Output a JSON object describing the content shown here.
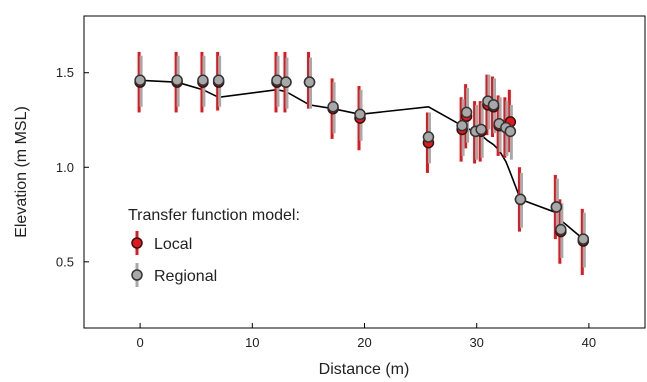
{
  "chart_data": {
    "type": "scatter",
    "xlabel": "Distance (m)",
    "ylabel": "Elevation (m MSL)",
    "xlim": [
      -5,
      45
    ],
    "ylim": [
      0.15,
      1.8
    ],
    "xticks": [
      0,
      10,
      20,
      30,
      40
    ],
    "yticks": [
      0.5,
      1.0,
      1.5
    ],
    "xtick_labels": [
      "0",
      "10",
      "20",
      "30",
      "40"
    ],
    "ytick_labels": [
      "0.5",
      "1.0",
      "1.5"
    ],
    "grid": false,
    "legend": {
      "title": "Transfer function model:",
      "placement": "bottom-left",
      "entries": [
        "Local",
        "Regional"
      ]
    },
    "line": {
      "x": [
        0,
        3.3,
        5.6,
        7.0,
        12.2,
        13.0,
        15.1,
        17.2,
        19.6,
        25.7,
        28.7,
        29.1,
        29.9,
        30.4,
        31.0,
        31.5,
        32.0,
        32.6,
        33.0,
        33.9,
        37.1,
        37.5,
        39.5
      ],
      "y": [
        1.46,
        1.45,
        1.41,
        1.37,
        1.41,
        1.4,
        1.33,
        1.31,
        1.28,
        1.32,
        1.22,
        1.21,
        1.18,
        1.17,
        1.14,
        1.12,
        1.09,
        1.03,
        0.97,
        0.83,
        0.76,
        0.72,
        0.62
      ]
    },
    "series": [
      {
        "name": "Local",
        "color": "#e0191f",
        "x": [
          0,
          3.3,
          5.6,
          7.0,
          12.2,
          13.0,
          15.1,
          17.2,
          19.6,
          25.7,
          28.7,
          29.1,
          29.9,
          30.4,
          31.0,
          31.5,
          32.0,
          32.6,
          33.0,
          33.9,
          37.1,
          37.5,
          39.5
        ],
        "y": [
          1.45,
          1.45,
          1.45,
          1.45,
          1.45,
          1.45,
          1.45,
          1.31,
          1.26,
          1.13,
          1.2,
          1.27,
          1.19,
          1.19,
          1.33,
          1.32,
          1.22,
          1.21,
          1.24,
          0.83,
          0.79,
          0.66,
          0.61
        ],
        "y_low": [
          1.29,
          1.29,
          1.29,
          1.3,
          1.29,
          1.29,
          1.31,
          1.15,
          1.09,
          0.97,
          1.03,
          1.1,
          1.02,
          1.03,
          1.17,
          1.16,
          1.06,
          1.05,
          1.08,
          0.66,
          0.62,
          0.49,
          0.43
        ],
        "y_high": [
          1.61,
          1.61,
          1.61,
          1.61,
          1.61,
          1.61,
          1.61,
          1.47,
          1.43,
          1.29,
          1.37,
          1.44,
          1.35,
          1.35,
          1.49,
          1.48,
          1.38,
          1.37,
          1.41,
          1.0,
          0.96,
          0.83,
          0.78
        ]
      },
      {
        "name": "Regional",
        "color": "#a8a8a8",
        "x": [
          0,
          3.3,
          5.6,
          7.0,
          12.2,
          13.0,
          15.1,
          17.2,
          19.6,
          25.7,
          28.7,
          29.1,
          29.9,
          30.4,
          31.0,
          31.5,
          32.0,
          32.6,
          33.0,
          33.9,
          37.1,
          37.5,
          39.5
        ],
        "y": [
          1.46,
          1.46,
          1.46,
          1.46,
          1.46,
          1.45,
          1.45,
          1.32,
          1.28,
          1.16,
          1.22,
          1.29,
          1.19,
          1.2,
          1.35,
          1.33,
          1.23,
          1.21,
          1.19,
          0.83,
          0.79,
          0.67,
          0.62
        ],
        "y_low": [
          1.32,
          1.32,
          1.32,
          1.32,
          1.32,
          1.31,
          1.31,
          1.18,
          1.14,
          1.02,
          1.06,
          1.13,
          1.04,
          1.05,
          1.2,
          1.18,
          1.08,
          1.06,
          1.04,
          0.68,
          0.64,
          0.52,
          0.47
        ],
        "y_high": [
          1.59,
          1.59,
          1.59,
          1.59,
          1.59,
          1.58,
          1.58,
          1.45,
          1.41,
          1.29,
          1.36,
          1.42,
          1.33,
          1.34,
          1.49,
          1.47,
          1.37,
          1.35,
          1.33,
          0.97,
          0.94,
          0.81,
          0.76
        ]
      }
    ]
  }
}
